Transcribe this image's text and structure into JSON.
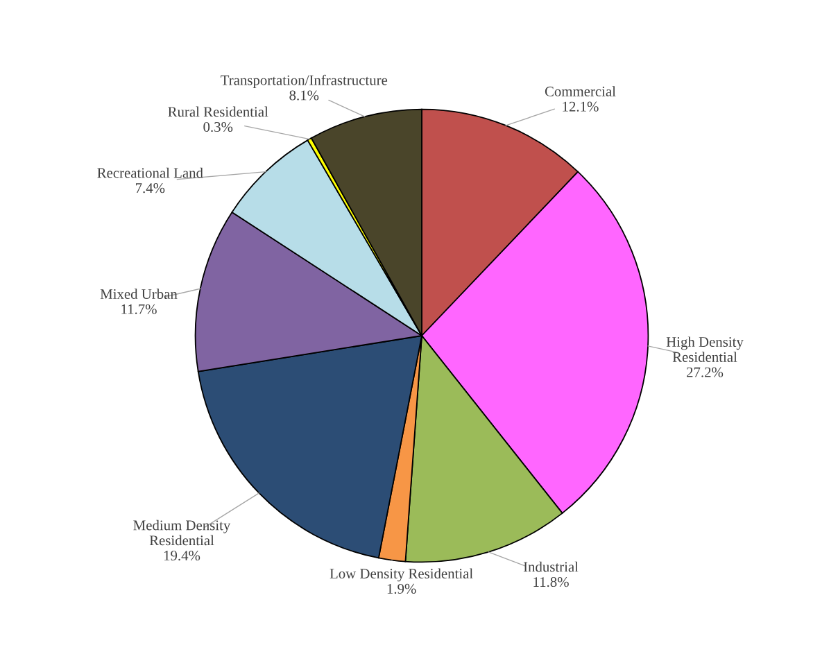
{
  "chart_data": {
    "type": "pie",
    "categories": [
      "Commercial",
      "High Density\nResidential",
      "Industrial",
      "Low Density Residential",
      "Medium Density\nResidential",
      "Mixed Urban",
      "Recreational Land",
      "Rural Residential",
      "Transportation/Infrastructure"
    ],
    "values": [
      12.1,
      27.2,
      11.8,
      1.9,
      19.4,
      11.7,
      7.4,
      0.3,
      8.1
    ],
    "value_labels": [
      "12.1%",
      "27.2%",
      "11.8%",
      "1.9%",
      "19.4%",
      "11.7%",
      "7.4%",
      "0.3%",
      "8.1%"
    ],
    "colors": [
      "#c0504d",
      "#ff66ff",
      "#9bbb59",
      "#f79646",
      "#2c4d75",
      "#8064a2",
      "#b7dde8",
      "#ffff00",
      "#4a452a"
    ],
    "legend": false
  }
}
